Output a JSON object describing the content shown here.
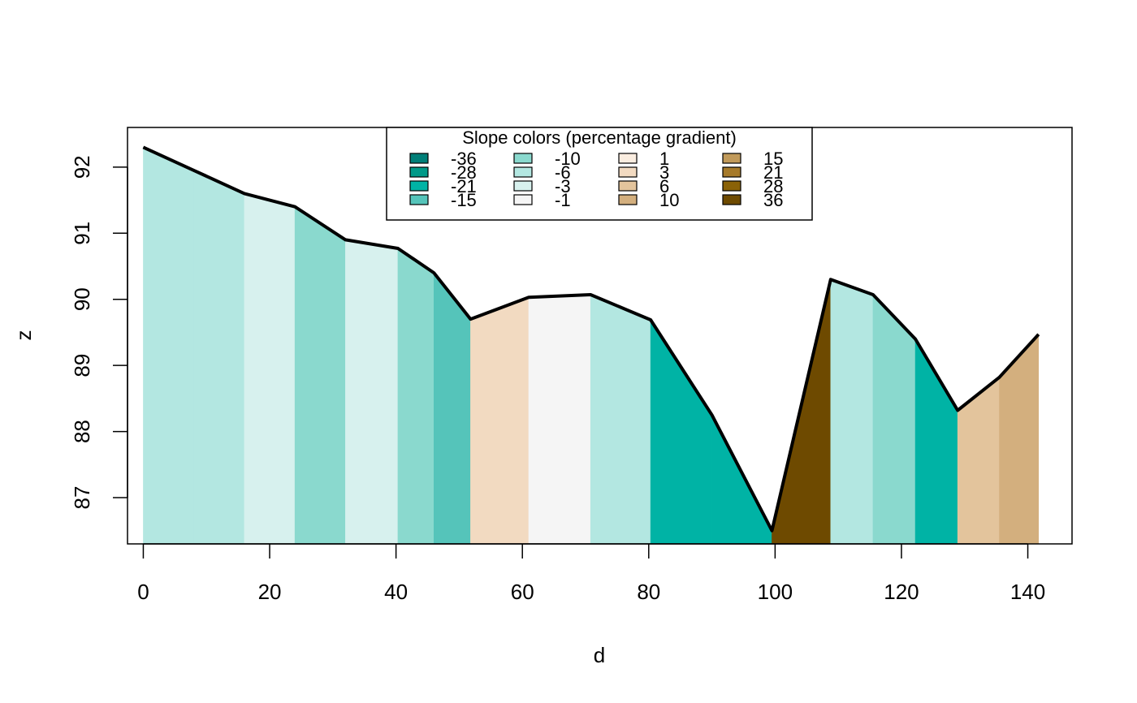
{
  "chart_data": {
    "type": "area",
    "title": "",
    "xlabel": "d",
    "ylabel": "z",
    "xlim": [
      -2.5,
      147
    ],
    "ylim": [
      86.3,
      92.6
    ],
    "x_ticks": [
      0,
      20,
      40,
      60,
      80,
      100,
      120,
      140
    ],
    "y_ticks": [
      87,
      88,
      89,
      90,
      91,
      92
    ],
    "x": [
      0,
      8,
      16,
      24,
      32,
      40.3,
      46,
      51.8,
      61,
      70.8,
      80.3,
      90,
      99.5,
      108.8,
      115.5,
      122.2,
      128.9,
      135.5,
      141.7
    ],
    "z": [
      92.3,
      91.95,
      91.6,
      91.4,
      90.9,
      90.77,
      90.4,
      89.7,
      90.03,
      90.07,
      89.69,
      88.25,
      86.5,
      90.3,
      90.07,
      89.4,
      88.32,
      88.82,
      89.47
    ],
    "segment_colors": [
      "#B3E7E1",
      "#B3E7E1",
      "#D7F1EE",
      "#8AD9CE",
      "#D7F1EE",
      "#8AD9CE",
      "#55C4BA",
      "#F2DAC1",
      "#F5F5F5",
      "#B3E7E1",
      "#00B3A5",
      "#00B3A5",
      "#6E4A00",
      "#B3E7E1",
      "#8AD9CE",
      "#00B3A5",
      "#E3C49C",
      "#D3AF7E"
    ],
    "grid": false,
    "legend": {
      "title": "Slope colors (percentage gradient)",
      "placement": "top-center",
      "columns": [
        [
          {
            "label": "-36",
            "color": "#007F78"
          },
          {
            "label": "-28",
            "color": "#009988"
          },
          {
            "label": "-21",
            "color": "#00B3A5"
          },
          {
            "label": "-15",
            "color": "#55C4BA"
          }
        ],
        [
          {
            "label": "-10",
            "color": "#8AD9CE"
          },
          {
            "label": "-6",
            "color": "#B3E7E1"
          },
          {
            "label": "-3",
            "color": "#D7F1EE"
          },
          {
            "label": "-1",
            "color": "#F5F5F5"
          }
        ],
        [
          {
            "label": "1",
            "color": "#FAEDE0"
          },
          {
            "label": "3",
            "color": "#F2DAC1"
          },
          {
            "label": "6",
            "color": "#E3C49C"
          },
          {
            "label": "10",
            "color": "#D3AF7E"
          }
        ],
        [
          {
            "label": "15",
            "color": "#C19A5A"
          },
          {
            "label": "21",
            "color": "#A67A2A"
          },
          {
            "label": "28",
            "color": "#8A6207"
          },
          {
            "label": "36",
            "color": "#6E4A00"
          }
        ]
      ]
    }
  }
}
